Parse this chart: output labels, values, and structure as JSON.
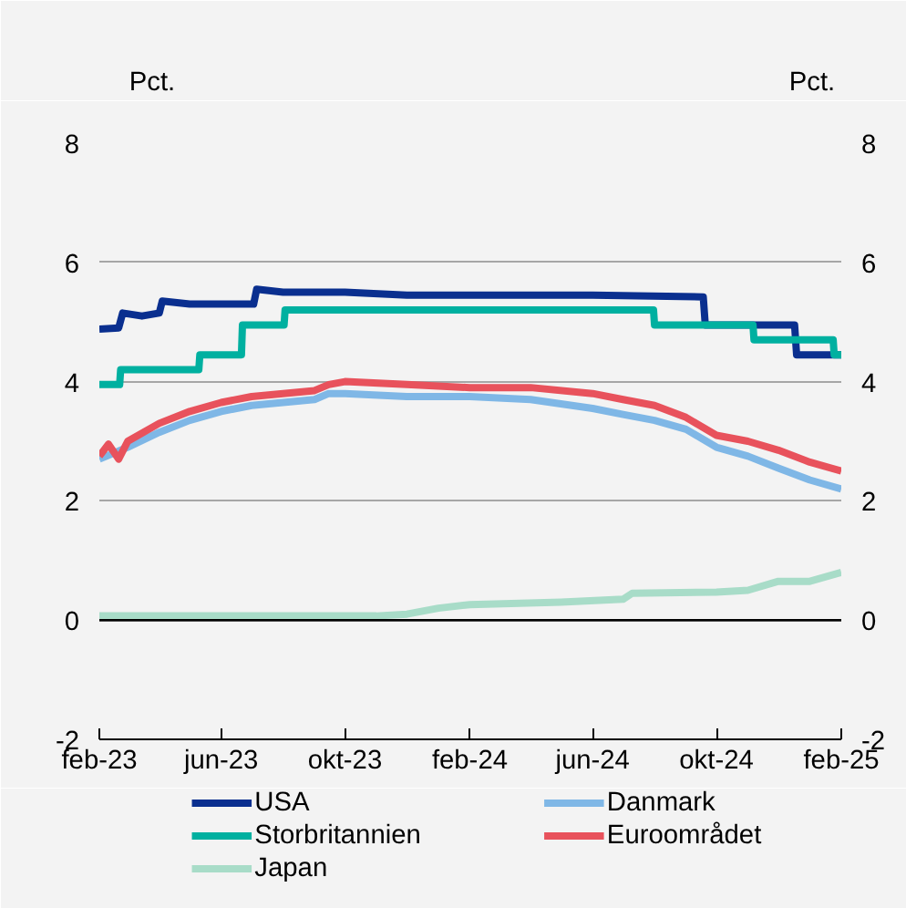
{
  "chart_data": {
    "type": "line",
    "ylabel": "Pct.",
    "y2label": "Pct.",
    "xlim": [
      "2023-02-01",
      "2025-02-01"
    ],
    "xticks": [
      {
        "value": "2023-02-01",
        "label": "feb-23"
      },
      {
        "value": "2023-06-01",
        "label": "jun-23"
      },
      {
        "value": "2023-10-01",
        "label": "okt-23"
      },
      {
        "value": "2024-02-01",
        "label": "feb-24"
      },
      {
        "value": "2024-06-01",
        "label": "jun-24"
      },
      {
        "value": "2024-10-01",
        "label": "okt-24"
      },
      {
        "value": "2025-02-01",
        "label": "feb-25"
      }
    ],
    "ylim": [
      -2,
      8
    ],
    "yticks": [
      -2,
      0,
      2,
      4,
      6,
      8
    ],
    "y2lim": [
      -2,
      8
    ],
    "y2ticks": [
      -2,
      0,
      2,
      4,
      6,
      8
    ],
    "grid": "y",
    "legend": "bottom",
    "line_style": "solid",
    "marker": "none",
    "ref_lines": [
      {
        "axis": "y",
        "value": 0,
        "color": "#000000"
      }
    ],
    "series": [
      {
        "name": "USA",
        "color": "#0a2f8f",
        "x": [
          "2023-02-01",
          "2023-02-20",
          "2023-02-24",
          "2023-03-15",
          "2023-04-01",
          "2023-04-04",
          "2023-05-01",
          "2023-07-03",
          "2023-07-06",
          "2023-08-01",
          "2023-10-01",
          "2023-12-01",
          "2024-02-01",
          "2024-06-01",
          "2024-09-18",
          "2024-09-20",
          "2024-12-17",
          "2024-12-19",
          "2025-02-01"
        ],
        "values": [
          4.88,
          4.9,
          5.15,
          5.1,
          5.15,
          5.35,
          5.3,
          5.3,
          5.55,
          5.5,
          5.5,
          5.45,
          5.45,
          5.45,
          5.42,
          4.95,
          4.95,
          4.45,
          4.45
        ]
      },
      {
        "name": "Danmark",
        "color": "#7fb7e6",
        "x": [
          "2023-02-01",
          "2023-02-15",
          "2023-03-01",
          "2023-04-01",
          "2023-05-01",
          "2023-06-01",
          "2023-07-01",
          "2023-08-01",
          "2023-09-01",
          "2023-09-15",
          "2023-10-01",
          "2023-12-01",
          "2024-02-01",
          "2024-04-01",
          "2024-06-01",
          "2024-07-01",
          "2024-08-01",
          "2024-09-01",
          "2024-10-01",
          "2024-11-01",
          "2024-12-01",
          "2025-01-01",
          "2025-02-01"
        ],
        "values": [
          2.7,
          2.8,
          2.9,
          3.15,
          3.35,
          3.5,
          3.6,
          3.65,
          3.7,
          3.8,
          3.8,
          3.75,
          3.75,
          3.7,
          3.55,
          3.45,
          3.35,
          3.2,
          2.9,
          2.75,
          2.55,
          2.35,
          2.2
        ]
      },
      {
        "name": "Storbritannien",
        "color": "#00b0a0",
        "x": [
          "2023-02-01",
          "2023-02-21",
          "2023-02-22",
          "2023-05-10",
          "2023-05-11",
          "2023-06-21",
          "2023-06-22",
          "2023-08-02",
          "2023-08-03",
          "2024-07-31",
          "2024-08-01",
          "2024-11-06",
          "2024-11-07",
          "2025-01-24",
          "2025-01-25",
          "2025-02-01"
        ],
        "values": [
          3.95,
          3.95,
          4.2,
          4.2,
          4.45,
          4.45,
          4.95,
          4.95,
          5.2,
          5.2,
          4.95,
          4.95,
          4.7,
          4.7,
          4.45,
          4.45
        ]
      },
      {
        "name": "Euroområdet",
        "color": "#e8525c",
        "x": [
          "2023-02-01",
          "2023-02-10",
          "2023-02-20",
          "2023-03-01",
          "2023-04-01",
          "2023-05-01",
          "2023-06-01",
          "2023-07-01",
          "2023-08-01",
          "2023-09-01",
          "2023-09-15",
          "2023-10-01",
          "2023-12-01",
          "2024-02-01",
          "2024-04-01",
          "2024-06-01",
          "2024-07-01",
          "2024-08-01",
          "2024-09-01",
          "2024-10-01",
          "2024-11-01",
          "2024-12-01",
          "2025-01-01",
          "2025-02-01"
        ],
        "values": [
          2.75,
          2.95,
          2.7,
          3.0,
          3.3,
          3.5,
          3.65,
          3.75,
          3.8,
          3.85,
          3.95,
          4.0,
          3.95,
          3.9,
          3.9,
          3.8,
          3.7,
          3.6,
          3.4,
          3.1,
          3.0,
          2.85,
          2.65,
          2.5
        ]
      },
      {
        "name": "Japan",
        "color": "#a8dcc8",
        "x": [
          "2023-02-01",
          "2023-11-01",
          "2023-12-01",
          "2024-01-01",
          "2024-02-01",
          "2024-05-01",
          "2024-07-01",
          "2024-07-10",
          "2024-10-01",
          "2024-11-01",
          "2024-12-01",
          "2025-01-01",
          "2025-02-01"
        ],
        "values": [
          0.07,
          0.07,
          0.1,
          0.2,
          0.26,
          0.3,
          0.35,
          0.45,
          0.47,
          0.5,
          0.65,
          0.65,
          0.8
        ]
      }
    ]
  }
}
